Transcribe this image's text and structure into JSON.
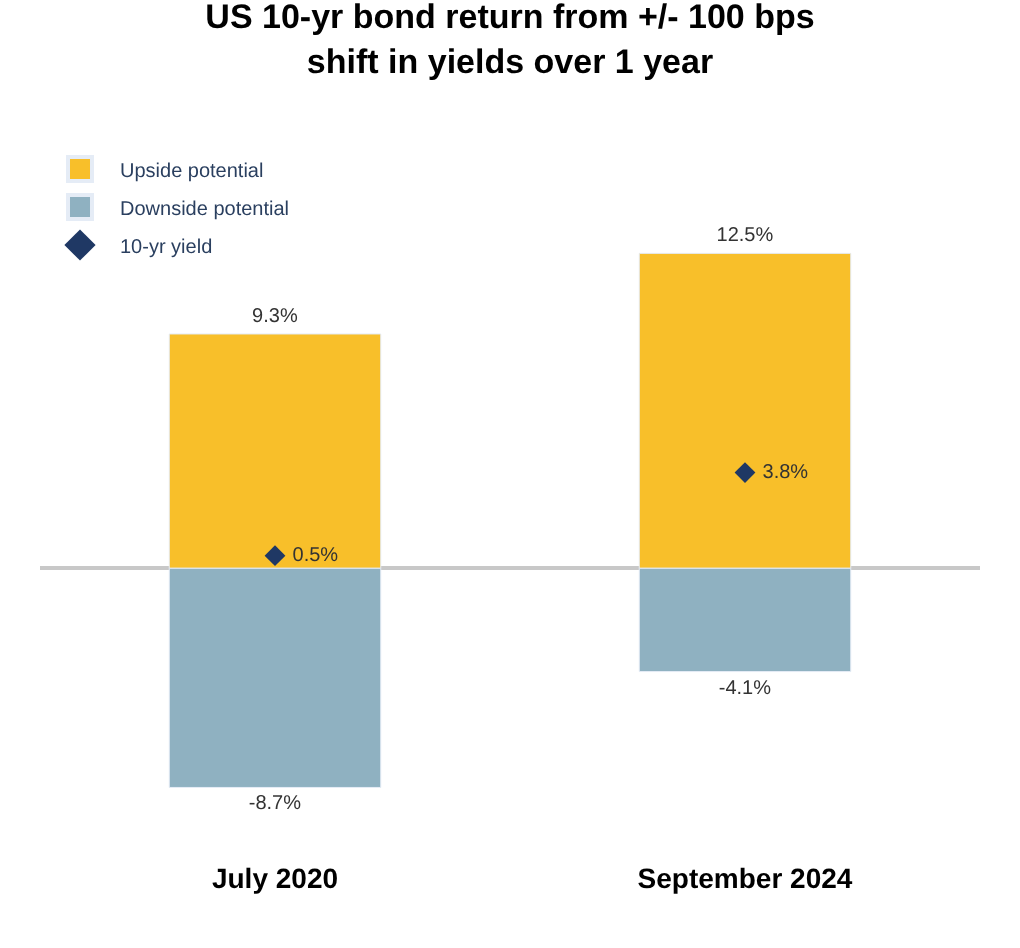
{
  "chart_data": {
    "type": "bar",
    "title": "US 10-yr bond return from +/- 100 bps\nshift in yields over 1 year",
    "categories": [
      "July 2020",
      "September 2024"
    ],
    "stacked": true,
    "legend": "top left",
    "tick_labels": "x",
    "series": [
      {
        "name": "Upside potential",
        "color": "#f8bf2a",
        "values": [
          9.3,
          12.5
        ],
        "value_labels": [
          "9.3%",
          "12.5%"
        ]
      },
      {
        "name": "Downside potential",
        "color": "#8fb1c1",
        "values": [
          -8.7,
          -4.1
        ],
        "value_labels": [
          "-8.7%",
          "-4.1%"
        ]
      },
      {
        "name": "10-yr yield",
        "type": "scatter",
        "marker": "diamond",
        "color": "#1f3864",
        "x": [
          "July 2020",
          "September 2024"
        ],
        "values": [
          0.5,
          3.8
        ],
        "value_labels": [
          "0.5%",
          "3.8%"
        ]
      }
    ]
  }
}
